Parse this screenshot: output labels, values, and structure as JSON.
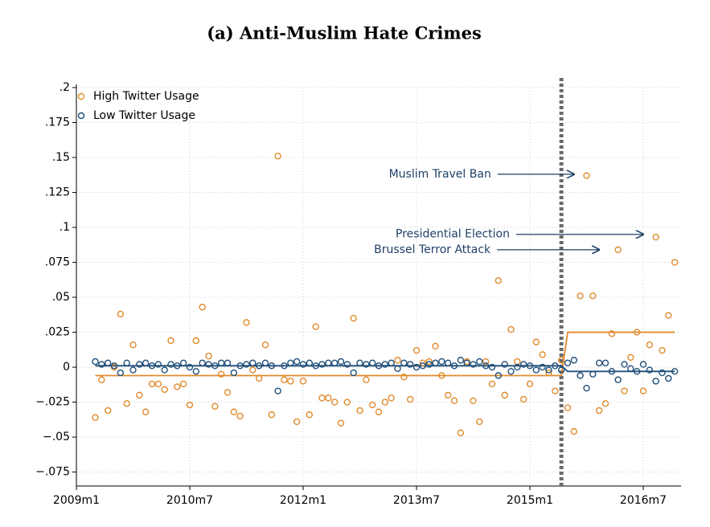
{
  "chart_data": {
    "type": "scatter",
    "title": "(a) Anti-Muslim Hate Crimes",
    "xlim": [
      0,
      96
    ],
    "ylim": [
      -0.085,
      0.2
    ],
    "xticks": [
      {
        "value": 0,
        "label": "2009m1"
      },
      {
        "value": 18,
        "label": "2010m7"
      },
      {
        "value": 36,
        "label": "2012m1"
      },
      {
        "value": 54,
        "label": "2013m7"
      },
      {
        "value": 72,
        "label": "2015m1"
      },
      {
        "value": 90,
        "label": "2016m7"
      }
    ],
    "yticks": [
      {
        "value": -0.075,
        "label": "−.075"
      },
      {
        "value": -0.05,
        "label": "−.05"
      },
      {
        "value": -0.025,
        "label": "−.025"
      },
      0,
      {
        "value": 0.025,
        "label": ".025"
      },
      {
        "value": 0.05,
        "label": ".05"
      },
      {
        "value": 0.075,
        "label": ".075"
      },
      {
        "value": 0.1,
        "label": ".1"
      },
      {
        "value": 0.125,
        "label": ".125"
      },
      {
        "value": 0.15,
        "label": ".15"
      },
      {
        "value": 0.175,
        "label": ".175"
      },
      {
        "value": 0.2,
        "label": ".2"
      }
    ],
    "grid": true,
    "legend": "top-left",
    "event_x": 77,
    "x": [
      3,
      4,
      5,
      6,
      7,
      8,
      9,
      10,
      11,
      12,
      13,
      14,
      15,
      16,
      17,
      18,
      19,
      20,
      21,
      22,
      23,
      24,
      25,
      26,
      27,
      28,
      29,
      30,
      31,
      32,
      33,
      34,
      35,
      36,
      37,
      38,
      39,
      40,
      41,
      42,
      43,
      44,
      45,
      46,
      47,
      48,
      49,
      50,
      51,
      52,
      53,
      54,
      55,
      56,
      57,
      58,
      59,
      60,
      61,
      62,
      63,
      64,
      65,
      66,
      67,
      68,
      69,
      70,
      71,
      72,
      73,
      74,
      75,
      76,
      77,
      78,
      79,
      80,
      81,
      82,
      83,
      84,
      85,
      86,
      87,
      88,
      89,
      90,
      91,
      92,
      93,
      94,
      95
    ],
    "series": [
      {
        "name": "High Twitter Usage",
        "color": "#e08a2c",
        "values": [
          -0.036,
          -0.009,
          -0.031,
          0.0,
          0.038,
          -0.026,
          0.016,
          -0.02,
          -0.032,
          -0.012,
          -0.012,
          -0.016,
          0.019,
          -0.014,
          -0.012,
          -0.027,
          0.019,
          0.043,
          0.008,
          -0.028,
          -0.005,
          -0.018,
          -0.032,
          -0.035,
          0.032,
          -0.002,
          -0.008,
          0.016,
          -0.034,
          0.151,
          -0.009,
          -0.01,
          -0.039,
          -0.01,
          -0.034,
          0.029,
          -0.022,
          -0.022,
          -0.025,
          -0.04,
          -0.025,
          0.035,
          -0.031,
          -0.009,
          -0.027,
          -0.032,
          -0.025,
          -0.022,
          0.005,
          -0.007,
          -0.023,
          0.012,
          0.003,
          0.004,
          0.015,
          -0.006,
          -0.02,
          -0.024,
          -0.047,
          0.004,
          -0.024,
          -0.039,
          0.004,
          -0.012,
          0.062,
          -0.02,
          0.027,
          0.004,
          -0.023,
          -0.012,
          0.018,
          0.009,
          -0.004,
          -0.017,
          0.005,
          -0.029,
          -0.046,
          0.051,
          0.137,
          0.051,
          -0.031,
          -0.026,
          0.024,
          0.084,
          -0.017,
          0.007,
          0.025,
          -0.017,
          0.016,
          0.093,
          0.012,
          0.037,
          0.075
        ]
      },
      {
        "name": "Low Twitter Usage",
        "color": "#1f4e79",
        "values": [
          0.004,
          0.002,
          0.003,
          0.001,
          -0.004,
          0.003,
          -0.002,
          0.002,
          0.003,
          0.001,
          0.002,
          -0.002,
          0.002,
          0.001,
          0.003,
          0.0,
          -0.003,
          0.003,
          0.002,
          0.001,
          0.003,
          0.003,
          -0.004,
          0.001,
          0.002,
          0.003,
          0.001,
          0.003,
          0.001,
          -0.017,
          0.001,
          0.003,
          0.004,
          0.002,
          0.003,
          0.001,
          0.002,
          0.003,
          0.003,
          0.004,
          0.002,
          -0.004,
          0.003,
          0.002,
          0.003,
          0.001,
          0.002,
          0.003,
          -0.001,
          0.003,
          0.002,
          0.0,
          0.001,
          0.002,
          0.003,
          0.004,
          0.003,
          0.001,
          0.005,
          0.003,
          0.002,
          0.004,
          0.001,
          0.0,
          -0.006,
          0.002,
          -0.003,
          0.0,
          0.002,
          0.001,
          -0.002,
          0.0,
          -0.002,
          0.001,
          -0.002,
          0.003,
          0.005,
          -0.006,
          -0.015,
          -0.005,
          0.003,
          0.003,
          -0.003,
          -0.009,
          0.002,
          -0.001,
          -0.003,
          0.002,
          -0.002,
          -0.01,
          -0.004,
          -0.008,
          -0.003
        ]
      }
    ],
    "fits": [
      {
        "color": "#e08a2c",
        "x": [
          3,
          77,
          78,
          95
        ],
        "values": [
          -0.006,
          -0.006,
          0.025,
          0.025
        ]
      },
      {
        "color": "#1f4e79",
        "x": [
          3,
          77,
          78,
          95
        ],
        "values": [
          0.001,
          0.001,
          -0.003,
          -0.003
        ]
      }
    ],
    "annotations": [
      {
        "text": "Muslim Travel Ban",
        "x": 79,
        "y": 0.138
      },
      {
        "text": "Presidential Election",
        "x": 90,
        "y": 0.095
      },
      {
        "text": "Brussel Terror Attack",
        "x": 83,
        "y": 0.084
      }
    ]
  }
}
